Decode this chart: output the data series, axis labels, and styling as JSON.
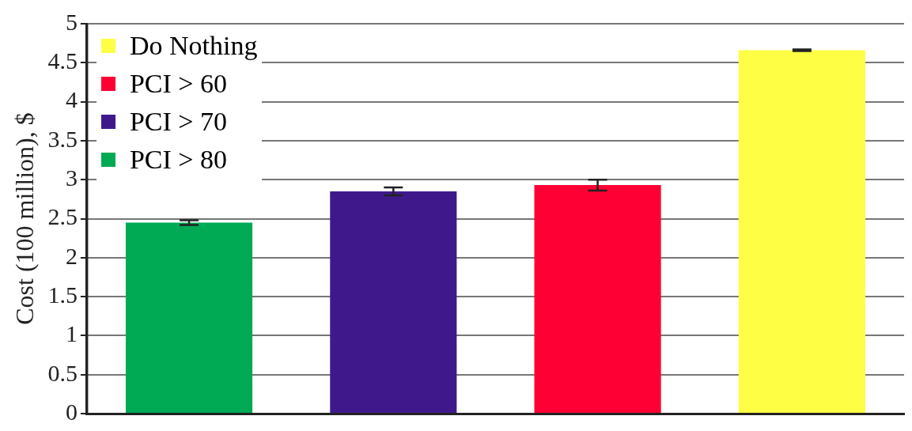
{
  "chart_data": {
    "type": "bar",
    "ylabel": "Cost (100 million), $",
    "categories": [
      null,
      null,
      null,
      null
    ],
    "series": [
      {
        "name": "Do Nothing",
        "color": "#fefe44",
        "values": [
          null,
          null,
          null,
          4.66
        ],
        "errors": [
          null,
          null,
          null,
          0.01
        ]
      },
      {
        "name": "PCI > 60",
        "color": "#fe0033",
        "values": [
          null,
          null,
          2.93,
          null
        ],
        "errors": [
          null,
          null,
          0.07,
          null
        ]
      },
      {
        "name": "PCI > 70",
        "color": "#3f198c",
        "values": [
          null,
          2.85,
          null,
          null
        ],
        "errors": [
          null,
          0.05,
          null,
          null
        ]
      },
      {
        "name": "PCI > 80",
        "color": "#00aa55",
        "values": [
          2.45,
          null,
          null,
          null
        ],
        "errors": [
          0.03,
          null,
          null,
          null
        ]
      }
    ],
    "ylim": [
      0,
      5
    ],
    "yticks": [
      0,
      0.5,
      1,
      1.5,
      2,
      2.5,
      3,
      3.5,
      4,
      4.5,
      5
    ],
    "grid": "y",
    "legend": "top left",
    "tick_labels": "y"
  }
}
